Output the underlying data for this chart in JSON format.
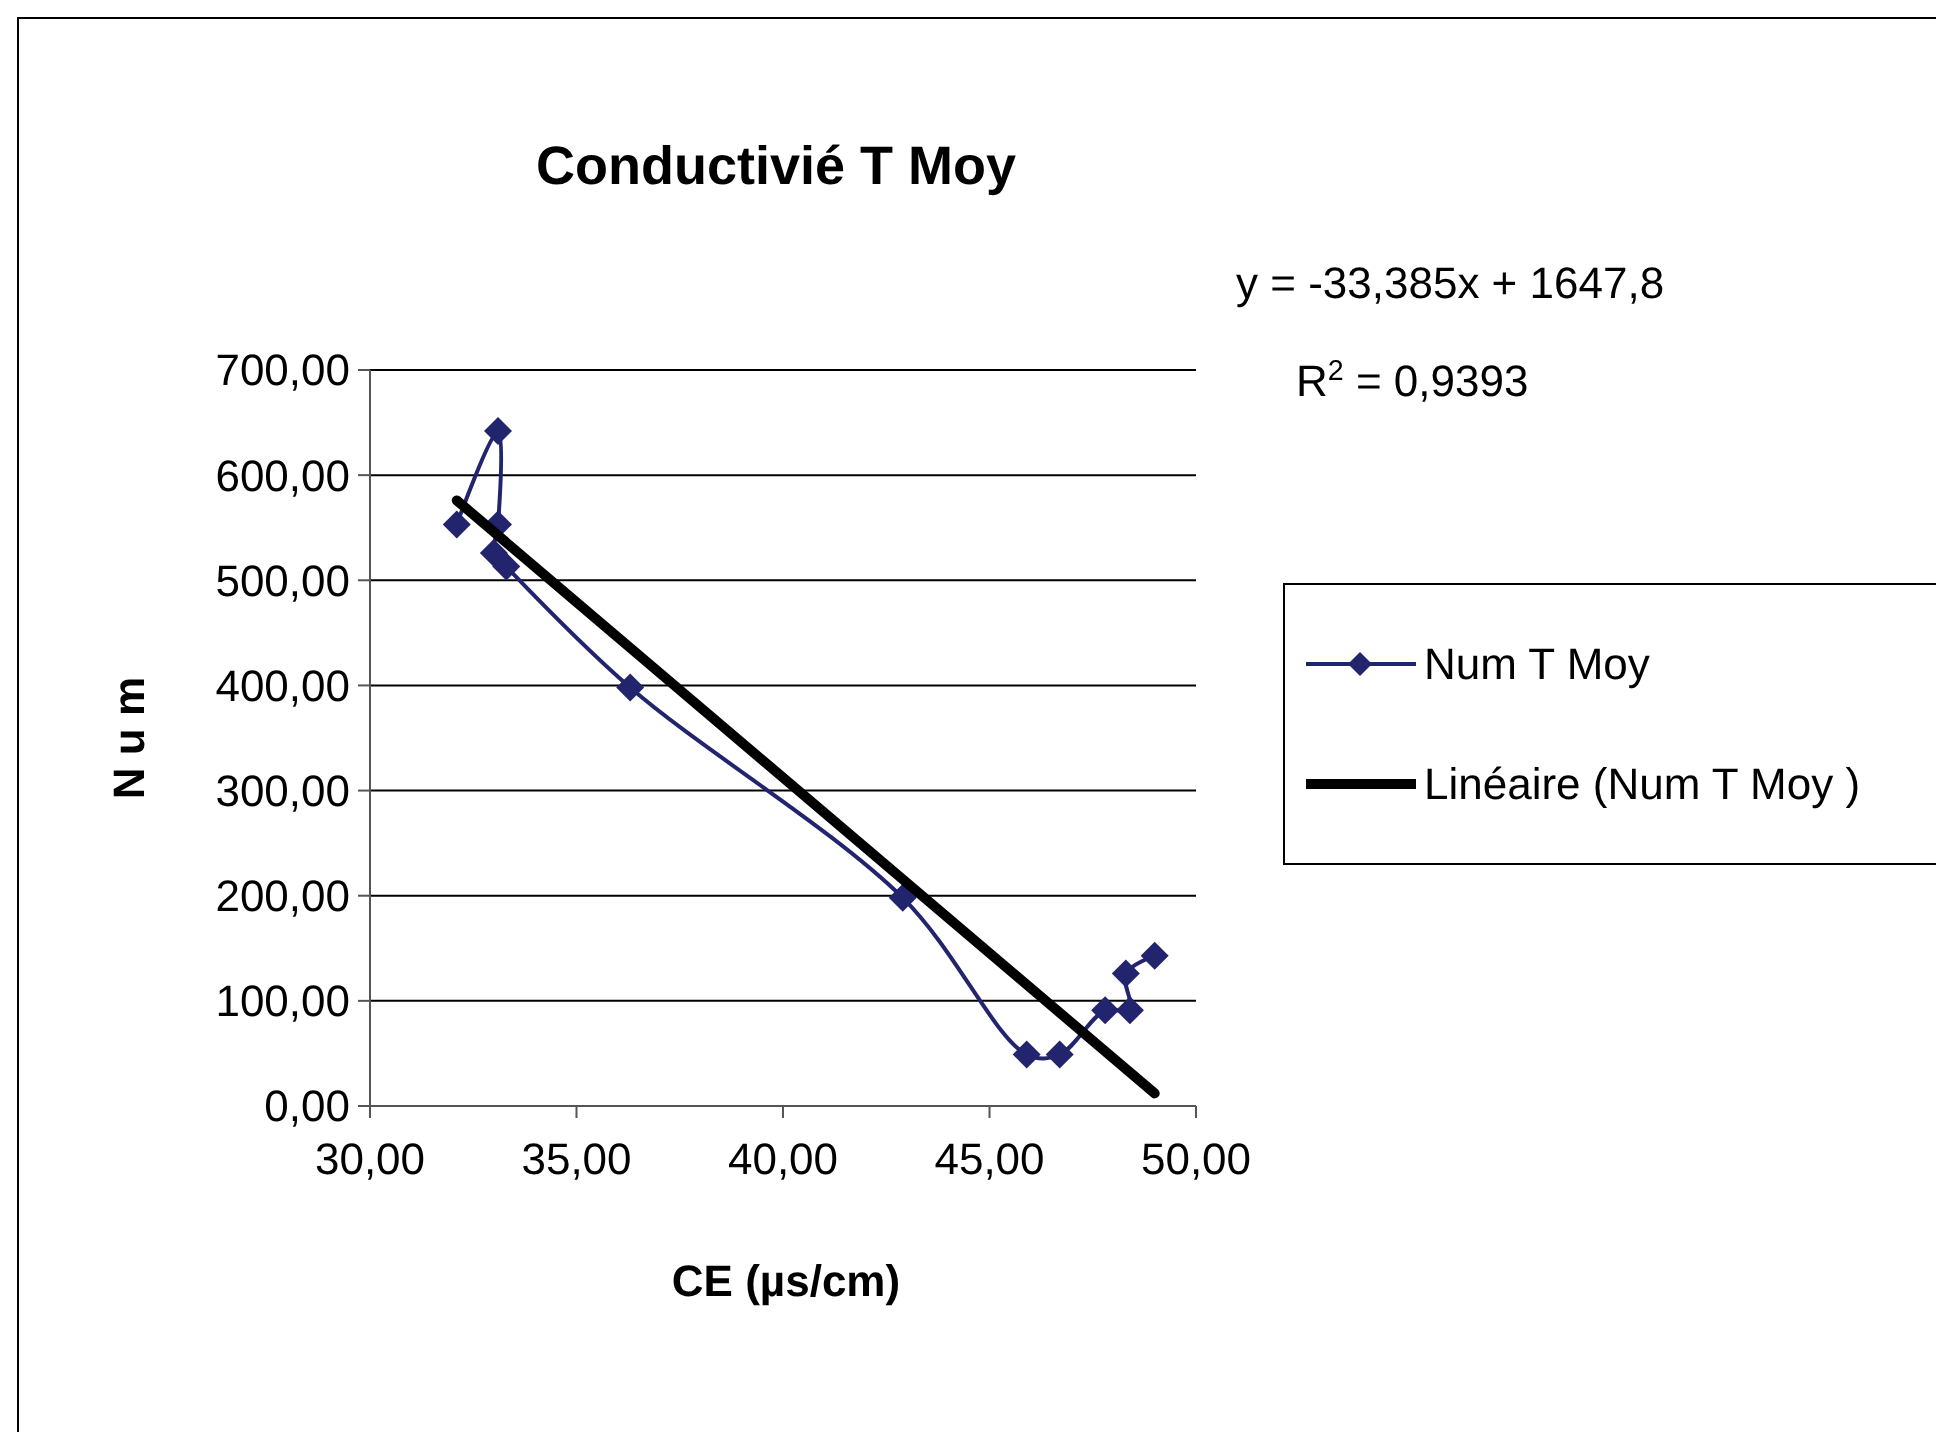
{
  "chart_data": {
    "type": "line",
    "title": "Conductivié T Moy",
    "xlabel": "CE (µs/cm)",
    "ylabel": "N u m",
    "annotations": [
      "y = -33,385x + 1647,8",
      "R$^{2}$ = 0,9393"
    ],
    "xlim": [
      30,
      50
    ],
    "xticks": [
      {
        "value": 30,
        "label": "30,00"
      },
      {
        "value": 35,
        "label": "35,00"
      },
      {
        "value": 40,
        "label": "40,00"
      },
      {
        "value": 45,
        "label": "45,00"
      },
      {
        "value": 50,
        "label": "50,00"
      }
    ],
    "ylim": [
      0,
      700
    ],
    "yticks": [
      {
        "value": 0,
        "label": "0,00"
      },
      {
        "value": 100,
        "label": "100,00"
      },
      {
        "value": 200,
        "label": "200,00"
      },
      {
        "value": 300,
        "label": "300,00"
      },
      {
        "value": 400,
        "label": "400,00"
      },
      {
        "value": 500,
        "label": "500,00"
      },
      {
        "value": 600,
        "label": "600,00"
      },
      {
        "value": 700,
        "label": "700,00"
      }
    ],
    "grid": "y",
    "legend": "right",
    "series": [
      {
        "name": "Num T Moy",
        "color": "#23246e",
        "marker": "diamond",
        "x": [
          32.1,
          33.1,
          33.1,
          33.0,
          33.3,
          36.3,
          42.9,
          45.9,
          46.7,
          47.8,
          48.4,
          48.3,
          49.0
        ],
        "values": [
          553,
          642,
          553,
          526,
          513,
          398,
          198,
          49,
          49,
          91,
          91,
          126,
          143
        ]
      },
      {
        "name": "Linéaire (Num T Moy )",
        "color": "#000000",
        "marker": "none",
        "x": [
          32.1,
          49.0
        ],
        "values": [
          576,
          12
        ]
      }
    ]
  }
}
